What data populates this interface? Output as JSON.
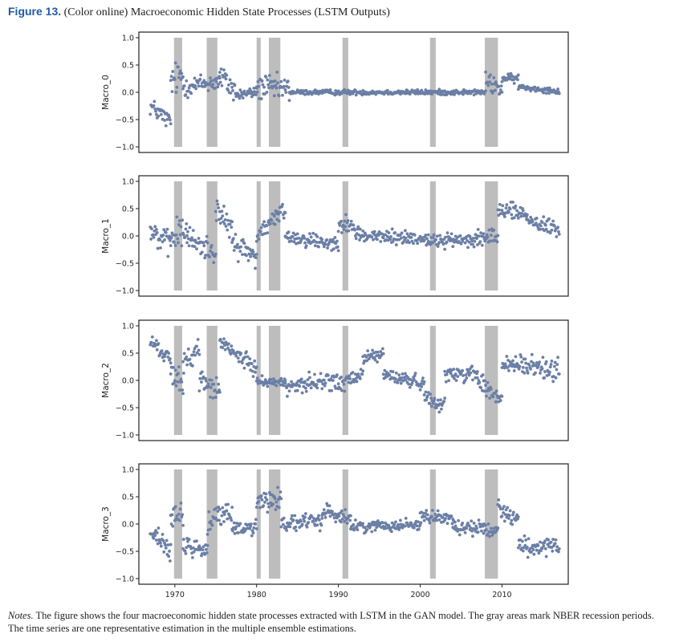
{
  "caption": {
    "label": "Figure 13.",
    "text": "(Color online) Macroeconomic Hidden State Processes (LSTM Outputs)"
  },
  "notes": {
    "label": "Notes.",
    "text": "The figure shows the four macroeconomic hidden state processes extracted with LSTM in the GAN model. The gray areas mark NBER recession periods. The time series are one representative estimation in the multiple ensemble estimations."
  },
  "colors": {
    "points": "#6b7fa6",
    "recession": "#bdbdbd",
    "axes": "#222222"
  },
  "chart_data": [
    {
      "type": "scatter",
      "ylabel": "Macro_0",
      "ylim": [
        -1.0,
        1.0
      ],
      "yticks": [
        "1.0",
        "0.5",
        "0.0",
        "−0.5",
        "−1.0"
      ],
      "ytick_values": [
        1.0,
        0.5,
        0.0,
        -0.5,
        -1.0
      ],
      "xlim": [
        1965.6,
        2018.1
      ],
      "recessions": [
        [
          1969.9,
          1970.9
        ],
        [
          1973.9,
          1975.2
        ],
        [
          1980.0,
          1980.5
        ],
        [
          1981.5,
          1982.9
        ],
        [
          1990.5,
          1991.2
        ],
        [
          2001.2,
          2001.9
        ],
        [
          2007.9,
          2009.5
        ]
      ],
      "segments": [
        {
          "x0": 1967.0,
          "x1": 1969.5,
          "y0": -0.25,
          "y1": -0.55,
          "noise": 0.25
        },
        {
          "x0": 1969.5,
          "x1": 1971.0,
          "y0": 0.2,
          "y1": 0.3,
          "noise": 0.45
        },
        {
          "x0": 1971.0,
          "x1": 1975.5,
          "y0": 0.1,
          "y1": 0.2,
          "noise": 0.28
        },
        {
          "x0": 1975.5,
          "x1": 1977.5,
          "y0": 0.3,
          "y1": 0.0,
          "noise": 0.35
        },
        {
          "x0": 1977.5,
          "x1": 1980.0,
          "y0": -0.05,
          "y1": 0.0,
          "noise": 0.15
        },
        {
          "x0": 1980.0,
          "x1": 1984.0,
          "y0": 0.1,
          "y1": 0.05,
          "noise": 0.35
        },
        {
          "x0": 1984.0,
          "x1": 2008.0,
          "y0": 0.0,
          "y1": 0.0,
          "noise": 0.07
        },
        {
          "x0": 2008.0,
          "x1": 2010.0,
          "y0": 0.2,
          "y1": 0.05,
          "noise": 0.25
        },
        {
          "x0": 2010.0,
          "x1": 2012.0,
          "y0": 0.25,
          "y1": 0.25,
          "noise": 0.12
        },
        {
          "x0": 2012.0,
          "x1": 2017.0,
          "y0": 0.1,
          "y1": 0.02,
          "noise": 0.08
        }
      ]
    },
    {
      "type": "scatter",
      "ylabel": "Macro_1",
      "ylim": [
        -1.0,
        1.0
      ],
      "yticks": [
        "1.0",
        "0.5",
        "0.0",
        "−0.5",
        "−1.0"
      ],
      "ytick_values": [
        1.0,
        0.5,
        0.0,
        -0.5,
        -1.0
      ],
      "xlim": [
        1965.6,
        2018.1
      ],
      "recessions": [
        [
          1969.9,
          1970.9
        ],
        [
          1973.9,
          1975.2
        ],
        [
          1980.0,
          1980.5
        ],
        [
          1981.5,
          1982.9
        ],
        [
          1990.5,
          1991.2
        ],
        [
          2001.2,
          2001.9
        ],
        [
          2007.9,
          2009.5
        ]
      ],
      "segments": [
        {
          "x0": 1967.0,
          "x1": 1969.5,
          "y0": 0.1,
          "y1": -0.2,
          "noise": 0.35
        },
        {
          "x0": 1969.5,
          "x1": 1971.5,
          "y0": 0.0,
          "y1": 0.1,
          "noise": 0.45
        },
        {
          "x0": 1971.5,
          "x1": 1975.0,
          "y0": -0.05,
          "y1": -0.3,
          "noise": 0.35
        },
        {
          "x0": 1975.0,
          "x1": 1977.0,
          "y0": 0.5,
          "y1": 0.1,
          "noise": 0.3
        },
        {
          "x0": 1977.0,
          "x1": 1980.0,
          "y0": -0.1,
          "y1": -0.4,
          "noise": 0.35
        },
        {
          "x0": 1980.0,
          "x1": 1983.5,
          "y0": 0.0,
          "y1": 0.5,
          "noise": 0.25
        },
        {
          "x0": 1983.5,
          "x1": 1990.0,
          "y0": 0.0,
          "y1": -0.15,
          "noise": 0.22
        },
        {
          "x0": 1990.0,
          "x1": 1993.0,
          "y0": 0.3,
          "y1": 0.0,
          "noise": 0.25
        },
        {
          "x0": 1993.0,
          "x1": 2001.0,
          "y0": 0.0,
          "y1": -0.05,
          "noise": 0.2
        },
        {
          "x0": 2001.0,
          "x1": 2007.0,
          "y0": -0.1,
          "y1": -0.05,
          "noise": 0.18
        },
        {
          "x0": 2007.0,
          "x1": 2009.5,
          "y0": 0.0,
          "y1": -0.1,
          "noise": 0.35
        },
        {
          "x0": 2009.5,
          "x1": 2013.0,
          "y0": 0.5,
          "y1": 0.4,
          "noise": 0.22
        },
        {
          "x0": 2013.0,
          "x1": 2017.0,
          "y0": 0.3,
          "y1": 0.1,
          "noise": 0.25
        }
      ]
    },
    {
      "type": "scatter",
      "ylabel": "Macro_2",
      "ylim": [
        -1.0,
        1.0
      ],
      "yticks": [
        "1.0",
        "0.5",
        "0.0",
        "−0.5",
        "−1.0"
      ],
      "ytick_values": [
        1.0,
        0.5,
        0.0,
        -0.5,
        -1.0
      ],
      "xlim": [
        1965.6,
        2018.1
      ],
      "recessions": [
        [
          1969.9,
          1970.9
        ],
        [
          1973.9,
          1975.2
        ],
        [
          1980.0,
          1980.5
        ],
        [
          1981.5,
          1982.9
        ],
        [
          1990.5,
          1991.2
        ],
        [
          2001.2,
          2001.9
        ],
        [
          2007.9,
          2009.5
        ]
      ],
      "segments": [
        {
          "x0": 1967.0,
          "x1": 1969.5,
          "y0": 0.7,
          "y1": 0.4,
          "noise": 0.2
        },
        {
          "x0": 1969.5,
          "x1": 1971.0,
          "y0": 0.1,
          "y1": -0.1,
          "noise": 0.35
        },
        {
          "x0": 1971.0,
          "x1": 1973.0,
          "y0": 0.3,
          "y1": 0.6,
          "noise": 0.3
        },
        {
          "x0": 1973.0,
          "x1": 1975.5,
          "y0": 0.0,
          "y1": -0.2,
          "noise": 0.3
        },
        {
          "x0": 1975.5,
          "x1": 1980.0,
          "y0": 0.7,
          "y1": 0.2,
          "noise": 0.22
        },
        {
          "x0": 1980.0,
          "x1": 1983.5,
          "y0": 0.0,
          "y1": -0.05,
          "noise": 0.12
        },
        {
          "x0": 1983.5,
          "x1": 1990.0,
          "y0": -0.1,
          "y1": 0.0,
          "noise": 0.25
        },
        {
          "x0": 1990.0,
          "x1": 1993.0,
          "y0": -0.1,
          "y1": 0.1,
          "noise": 0.25
        },
        {
          "x0": 1993.0,
          "x1": 1995.5,
          "y0": 0.4,
          "y1": 0.5,
          "noise": 0.2
        },
        {
          "x0": 1995.5,
          "x1": 2000.5,
          "y0": 0.1,
          "y1": -0.05,
          "noise": 0.18
        },
        {
          "x0": 2000.5,
          "x1": 2003.0,
          "y0": -0.3,
          "y1": -0.45,
          "noise": 0.2
        },
        {
          "x0": 2003.0,
          "x1": 2007.0,
          "y0": 0.1,
          "y1": 0.15,
          "noise": 0.22
        },
        {
          "x0": 2007.0,
          "x1": 2010.0,
          "y0": 0.0,
          "y1": -0.4,
          "noise": 0.3
        },
        {
          "x0": 2010.0,
          "x1": 2017.0,
          "y0": 0.3,
          "y1": 0.2,
          "noise": 0.3
        }
      ]
    },
    {
      "type": "scatter",
      "ylabel": "Macro_3",
      "ylim": [
        -1.0,
        1.0
      ],
      "yticks": [
        "1.0",
        "0.5",
        "0.0",
        "−0.5",
        "−1.0"
      ],
      "ytick_values": [
        1.0,
        0.5,
        0.0,
        -0.5,
        -1.0
      ],
      "xlim": [
        1965.6,
        2018.1
      ],
      "xticks": [
        "1970",
        "1980",
        "1990",
        "2000",
        "2010"
      ],
      "xtick_values": [
        1970,
        1980,
        1990,
        2000,
        2010
      ],
      "recessions": [
        [
          1969.9,
          1970.9
        ],
        [
          1973.9,
          1975.2
        ],
        [
          1980.0,
          1980.5
        ],
        [
          1981.5,
          1982.9
        ],
        [
          1990.5,
          1991.2
        ],
        [
          2001.2,
          2001.9
        ],
        [
          2007.9,
          2009.5
        ]
      ],
      "segments": [
        {
          "x0": 1967.0,
          "x1": 1969.5,
          "y0": -0.1,
          "y1": -0.5,
          "noise": 0.25
        },
        {
          "x0": 1969.5,
          "x1": 1971.0,
          "y0": 0.1,
          "y1": 0.1,
          "noise": 0.35
        },
        {
          "x0": 1971.0,
          "x1": 1974.0,
          "y0": -0.4,
          "y1": -0.5,
          "noise": 0.25
        },
        {
          "x0": 1974.0,
          "x1": 1977.0,
          "y0": 0.0,
          "y1": 0.3,
          "noise": 0.35
        },
        {
          "x0": 1977.0,
          "x1": 1980.0,
          "y0": -0.1,
          "y1": -0.05,
          "noise": 0.2
        },
        {
          "x0": 1980.0,
          "x1": 1983.0,
          "y0": 0.4,
          "y1": 0.5,
          "noise": 0.35
        },
        {
          "x0": 1983.0,
          "x1": 1988.0,
          "y0": 0.0,
          "y1": 0.05,
          "noise": 0.22
        },
        {
          "x0": 1988.0,
          "x1": 1991.5,
          "y0": 0.25,
          "y1": 0.1,
          "noise": 0.22
        },
        {
          "x0": 1991.5,
          "x1": 2000.0,
          "y0": -0.05,
          "y1": 0.0,
          "noise": 0.15
        },
        {
          "x0": 2000.0,
          "x1": 2004.0,
          "y0": 0.15,
          "y1": 0.1,
          "noise": 0.2
        },
        {
          "x0": 2004.0,
          "x1": 2009.5,
          "y0": -0.05,
          "y1": -0.1,
          "noise": 0.2
        },
        {
          "x0": 2009.5,
          "x1": 2012.0,
          "y0": 0.3,
          "y1": 0.1,
          "noise": 0.25
        },
        {
          "x0": 2012.0,
          "x1": 2017.0,
          "y0": -0.4,
          "y1": -0.45,
          "noise": 0.25
        }
      ]
    }
  ]
}
